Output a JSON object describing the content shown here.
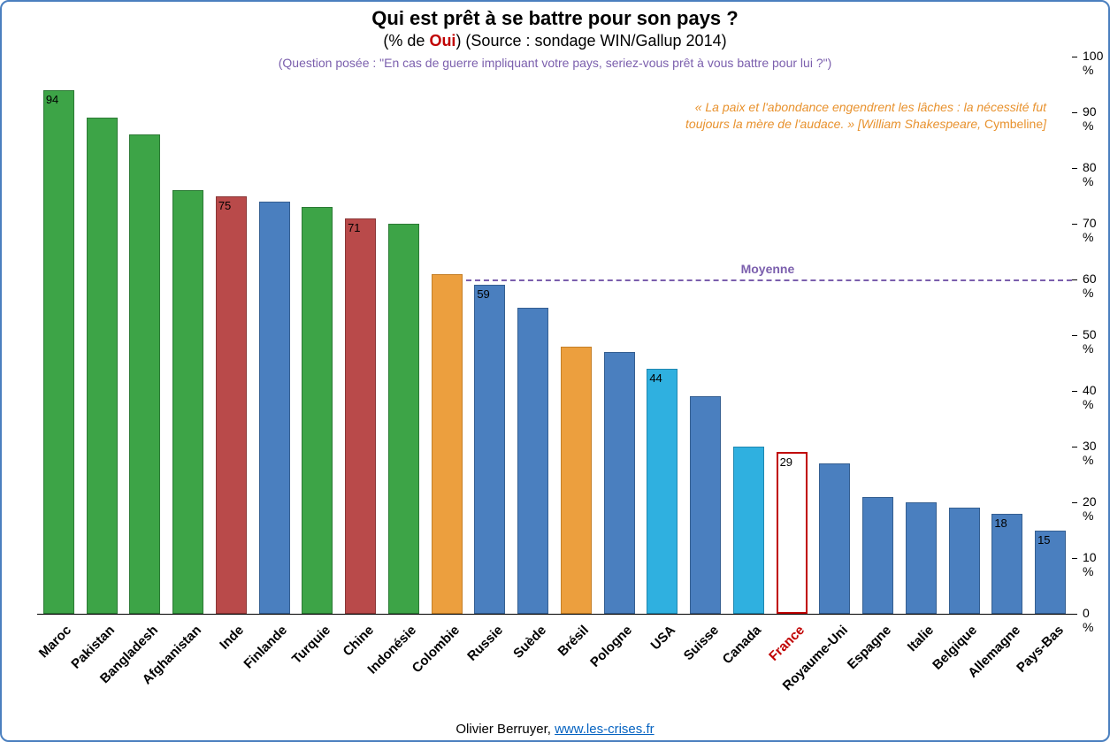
{
  "title": "Qui est prêt à se battre pour son pays ?",
  "subtitle_prefix": "(% de ",
  "subtitle_oui": "Oui",
  "subtitle_suffix": ") (Source : sondage WIN/Gallup 2014)",
  "question": "(Question posée : \"En cas de guerre impliquant votre pays, seriez-vous prêt à vous battre pour lui ?\")",
  "quote_line1": "« La paix et l'abondance engendrent les lâches : la nécessité fut",
  "quote_line2_text": "toujours la mère de l'audace. » [William Shakespeare, ",
  "quote_line2_work": "Cymbeline",
  "quote_line2_close": "]",
  "mean_label": "Moyenne",
  "mean_value": 60,
  "credit_author": "Olivier Berruyer,  ",
  "credit_link": "www.les-crises.fr",
  "chart": {
    "type": "bar",
    "ylim": [
      0,
      100
    ],
    "ytick_step": 10,
    "ytick_suffix": " %",
    "background_color": "#ffffff",
    "frame_border_color": "#4a7fbf",
    "mean_line_color": "#7b5fad",
    "bar_gap_ratio": 0.28,
    "bars": [
      {
        "label": "Maroc",
        "value": 94,
        "fill": "#3da447",
        "border": "#2c7a35",
        "show_value": true
      },
      {
        "label": "Pakistan",
        "value": 89,
        "fill": "#3da447",
        "border": "#2c7a35",
        "show_value": false
      },
      {
        "label": "Bangladesh",
        "value": 86,
        "fill": "#3da447",
        "border": "#2c7a35",
        "show_value": false
      },
      {
        "label": "Afghanistan",
        "value": 76,
        "fill": "#3da447",
        "border": "#2c7a35",
        "show_value": false
      },
      {
        "label": "Inde",
        "value": 75,
        "fill": "#b94a4a",
        "border": "#8a3737",
        "show_value": true
      },
      {
        "label": "Finlande",
        "value": 74,
        "fill": "#4a7fbf",
        "border": "#355f91",
        "show_value": false
      },
      {
        "label": "Turquie",
        "value": 73,
        "fill": "#3da447",
        "border": "#2c7a35",
        "show_value": false
      },
      {
        "label": "Chine",
        "value": 71,
        "fill": "#b94a4a",
        "border": "#8a3737",
        "show_value": true
      },
      {
        "label": "Indonésie",
        "value": 70,
        "fill": "#3da447",
        "border": "#2c7a35",
        "show_value": false
      },
      {
        "label": "Colombie",
        "value": 61,
        "fill": "#ec9f3e",
        "border": "#c47f27",
        "show_value": false
      },
      {
        "label": "Russie",
        "value": 59,
        "fill": "#4a7fbf",
        "border": "#355f91",
        "show_value": true
      },
      {
        "label": "Suède",
        "value": 55,
        "fill": "#4a7fbf",
        "border": "#355f91",
        "show_value": false
      },
      {
        "label": "Brésil",
        "value": 48,
        "fill": "#ec9f3e",
        "border": "#c47f27",
        "show_value": false
      },
      {
        "label": "Pologne",
        "value": 47,
        "fill": "#4a7fbf",
        "border": "#355f91",
        "show_value": false
      },
      {
        "label": "USA",
        "value": 44,
        "fill": "#2fb0e0",
        "border": "#1f87b0",
        "show_value": true
      },
      {
        "label": "Suisse",
        "value": 39,
        "fill": "#4a7fbf",
        "border": "#355f91",
        "show_value": false
      },
      {
        "label": "Canada",
        "value": 30,
        "fill": "#2fb0e0",
        "border": "#1f87b0",
        "show_value": false
      },
      {
        "label": "France",
        "value": 29,
        "fill": "#ffffff",
        "border": "#c00000",
        "show_value": true,
        "highlight": true
      },
      {
        "label": "Royaume-Uni",
        "value": 27,
        "fill": "#4a7fbf",
        "border": "#355f91",
        "show_value": false
      },
      {
        "label": "Espagne",
        "value": 21,
        "fill": "#4a7fbf",
        "border": "#355f91",
        "show_value": false
      },
      {
        "label": "Italie",
        "value": 20,
        "fill": "#4a7fbf",
        "border": "#355f91",
        "show_value": false
      },
      {
        "label": "Belgique",
        "value": 19,
        "fill": "#4a7fbf",
        "border": "#355f91",
        "show_value": false
      },
      {
        "label": "Allemagne",
        "value": 18,
        "fill": "#4a7fbf",
        "border": "#355f91",
        "show_value": true
      },
      {
        "label": "Pays-Bas",
        "value": 15,
        "fill": "#4a7fbf",
        "border": "#355f91",
        "show_value": true
      }
    ]
  }
}
